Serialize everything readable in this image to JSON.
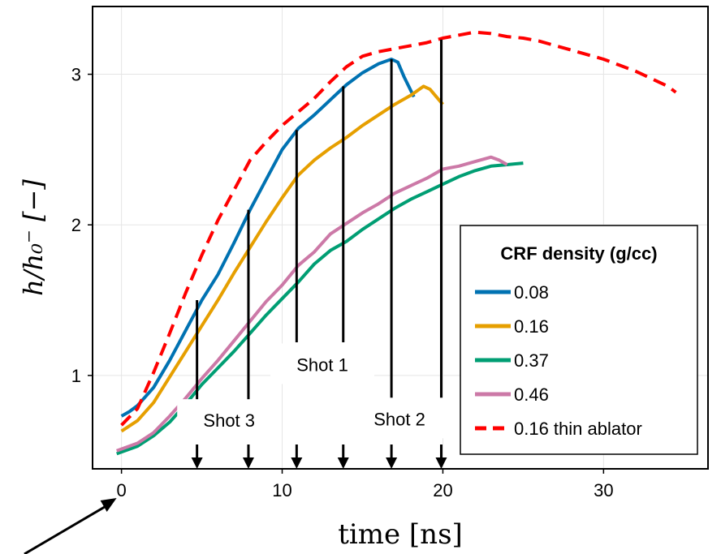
{
  "chart_data": {
    "type": "line",
    "xlabel": "time [ns]",
    "ylabel": "h/h₀⁻ [−]",
    "xlim": [
      -1.8,
      36.5
    ],
    "ylim": [
      0.38,
      3.45
    ],
    "xticks": [
      "0",
      "10",
      "20",
      "30"
    ],
    "yticks": [
      "1",
      "2",
      "3"
    ],
    "grid": true,
    "legend": {
      "title": "CRF density (g/cc)",
      "placement": "bottom-right"
    },
    "series": [
      {
        "name": "0.08",
        "color": "#0072b2",
        "dash": "solid",
        "points": [
          [
            0,
            0.73
          ],
          [
            0.5,
            0.76
          ],
          [
            1,
            0.8
          ],
          [
            2,
            0.92
          ],
          [
            3,
            1.1
          ],
          [
            4,
            1.3
          ],
          [
            5,
            1.5
          ],
          [
            6,
            1.67
          ],
          [
            7,
            1.88
          ],
          [
            8,
            2.1
          ],
          [
            9,
            2.3
          ],
          [
            10,
            2.5
          ],
          [
            11,
            2.64
          ],
          [
            12,
            2.73
          ],
          [
            13,
            2.83
          ],
          [
            14,
            2.93
          ],
          [
            15,
            3.01
          ],
          [
            16,
            3.07
          ],
          [
            16.8,
            3.1
          ],
          [
            17.2,
            3.08
          ],
          [
            17.6,
            2.98
          ],
          [
            18.2,
            2.85
          ]
        ]
      },
      {
        "name": "0.16",
        "color": "#e69f00",
        "dash": "solid",
        "points": [
          [
            0,
            0.63
          ],
          [
            1,
            0.7
          ],
          [
            2,
            0.82
          ],
          [
            3,
            0.99
          ],
          [
            4,
            1.16
          ],
          [
            5,
            1.33
          ],
          [
            6,
            1.5
          ],
          [
            7,
            1.68
          ],
          [
            8,
            1.85
          ],
          [
            9,
            2.02
          ],
          [
            10,
            2.18
          ],
          [
            11,
            2.33
          ],
          [
            12,
            2.43
          ],
          [
            13,
            2.51
          ],
          [
            14,
            2.58
          ],
          [
            15,
            2.66
          ],
          [
            16,
            2.73
          ],
          [
            17,
            2.8
          ],
          [
            18,
            2.86
          ],
          [
            18.8,
            2.92
          ],
          [
            19.2,
            2.9
          ],
          [
            19.6,
            2.85
          ],
          [
            20,
            2.8
          ]
        ]
      },
      {
        "name": "0.37",
        "color": "#009e73",
        "dash": "solid",
        "points": [
          [
            -0.3,
            0.48
          ],
          [
            1,
            0.53
          ],
          [
            2,
            0.6
          ],
          [
            3,
            0.69
          ],
          [
            4,
            0.81
          ],
          [
            5,
            0.94
          ],
          [
            6,
            1.05
          ],
          [
            7,
            1.16
          ],
          [
            8,
            1.28
          ],
          [
            9,
            1.4
          ],
          [
            10,
            1.51
          ],
          [
            11,
            1.62
          ],
          [
            12,
            1.74
          ],
          [
            13,
            1.83
          ],
          [
            14,
            1.89
          ],
          [
            15,
            1.97
          ],
          [
            16,
            2.04
          ],
          [
            17,
            2.11
          ],
          [
            18,
            2.17
          ],
          [
            19,
            2.22
          ],
          [
            20,
            2.27
          ],
          [
            21,
            2.32
          ],
          [
            22,
            2.36
          ],
          [
            23,
            2.39
          ],
          [
            24,
            2.4
          ],
          [
            25,
            2.41
          ]
        ]
      },
      {
        "name": "0.46",
        "color": "#cc79a7",
        "dash": "solid",
        "points": [
          [
            -0.3,
            0.5
          ],
          [
            1,
            0.55
          ],
          [
            2,
            0.62
          ],
          [
            3,
            0.73
          ],
          [
            4,
            0.85
          ],
          [
            5,
            0.98
          ],
          [
            6,
            1.1
          ],
          [
            7,
            1.23
          ],
          [
            8,
            1.36
          ],
          [
            9,
            1.49
          ],
          [
            10,
            1.6
          ],
          [
            11,
            1.73
          ],
          [
            12,
            1.82
          ],
          [
            13,
            1.94
          ],
          [
            14,
            2.01
          ],
          [
            15,
            2.08
          ],
          [
            16,
            2.14
          ],
          [
            17,
            2.21
          ],
          [
            18,
            2.26
          ],
          [
            19,
            2.31
          ],
          [
            20,
            2.37
          ],
          [
            21,
            2.39
          ],
          [
            22,
            2.42
          ],
          [
            23,
            2.45
          ],
          [
            23.5,
            2.43
          ],
          [
            24,
            2.4
          ]
        ]
      },
      {
        "name": "0.16 thin ablator",
        "color": "#ff0000",
        "dash": "dashed",
        "points": [
          [
            0,
            0.67
          ],
          [
            1,
            0.78
          ],
          [
            2,
            1.02
          ],
          [
            3,
            1.28
          ],
          [
            4,
            1.55
          ],
          [
            5,
            1.8
          ],
          [
            6,
            2.03
          ],
          [
            7,
            2.23
          ],
          [
            8,
            2.43
          ],
          [
            9,
            2.55
          ],
          [
            10,
            2.66
          ],
          [
            11,
            2.75
          ],
          [
            12,
            2.84
          ],
          [
            13,
            2.95
          ],
          [
            14,
            3.05
          ],
          [
            15,
            3.12
          ],
          [
            16,
            3.15
          ],
          [
            17,
            3.17
          ],
          [
            18,
            3.19
          ],
          [
            19,
            3.21
          ],
          [
            20,
            3.24
          ],
          [
            21,
            3.26
          ],
          [
            22,
            3.28
          ],
          [
            23,
            3.27
          ],
          [
            24,
            3.25
          ],
          [
            25,
            3.24
          ],
          [
            26,
            3.22
          ],
          [
            27,
            3.19
          ],
          [
            28,
            3.16
          ],
          [
            29,
            3.13
          ],
          [
            30,
            3.1
          ],
          [
            31,
            3.06
          ],
          [
            32,
            3.02
          ],
          [
            33,
            2.97
          ],
          [
            34,
            2.92
          ],
          [
            34.5,
            2.88
          ]
        ]
      }
    ],
    "vertical_lines": [
      {
        "x": 4.7,
        "y_top": 1.5,
        "y_bottom": 0.83
      },
      {
        "x": 7.9,
        "y_top": 2.1,
        "y_bottom": 0.83
      },
      {
        "x": 10.9,
        "y_top": 2.63,
        "y_bottom": 1.22
      },
      {
        "x": 13.8,
        "y_top": 2.92,
        "y_bottom": 1.22
      },
      {
        "x": 16.8,
        "y_top": 3.1,
        "y_bottom": 0.82
      },
      {
        "x": 19.9,
        "y_top": 3.23,
        "y_bottom": 0.82
      }
    ],
    "arrows_x": [
      4.7,
      7.9,
      10.9,
      13.8,
      16.8,
      19.9
    ],
    "annotations": [
      {
        "text": "Shot 1",
        "x": 12.5,
        "y": 1.04
      },
      {
        "text": "Shot 3",
        "x": 6.7,
        "y": 0.67
      },
      {
        "text": "Shot 2",
        "x": 17.3,
        "y": 0.68
      }
    ]
  }
}
